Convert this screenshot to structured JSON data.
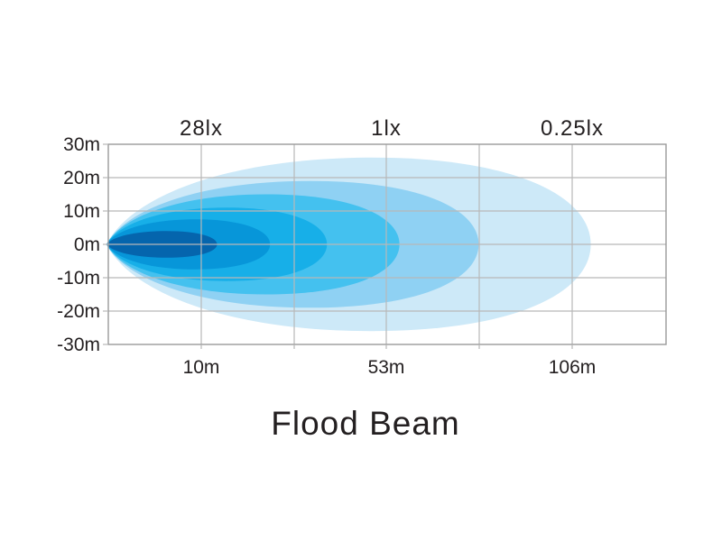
{
  "chart_data": {
    "type": "area",
    "title": "Flood Beam",
    "xlabel": "",
    "ylabel": "",
    "x_ticks": [
      {
        "value": 10,
        "label": "10m"
      },
      {
        "value": 53,
        "label": "53m"
      },
      {
        "value": 106,
        "label": "106m"
      }
    ],
    "top_labels": [
      {
        "value": 10,
        "label": "28lx"
      },
      {
        "value": 53,
        "label": "1lx"
      },
      {
        "value": 106,
        "label": "0.25lx"
      }
    ],
    "y_ticks": [
      {
        "value": 30,
        "label": "30m"
      },
      {
        "value": 20,
        "label": "20m"
      },
      {
        "value": 10,
        "label": "10m"
      },
      {
        "value": 0,
        "label": "0m"
      },
      {
        "value": -10,
        "label": "-10m"
      },
      {
        "value": -20,
        "label": "-20m"
      },
      {
        "value": -30,
        "label": "-30m"
      }
    ],
    "ylim": [
      -30,
      30
    ],
    "grid": true,
    "contours": [
      {
        "reach": 0.865,
        "half_width": 26,
        "color": "#cde9f8"
      },
      {
        "reach": 0.664,
        "half_width": 19,
        "color": "#8fd1f3"
      },
      {
        "reach": 0.522,
        "half_width": 15,
        "color": "#44c1ef"
      },
      {
        "reach": 0.392,
        "half_width": 11,
        "color": "#17afe8"
      },
      {
        "reach": 0.29,
        "half_width": 7.5,
        "color": "#0796d9"
      },
      {
        "reach": 0.195,
        "half_width": 4,
        "color": "#0565ad"
      }
    ]
  }
}
